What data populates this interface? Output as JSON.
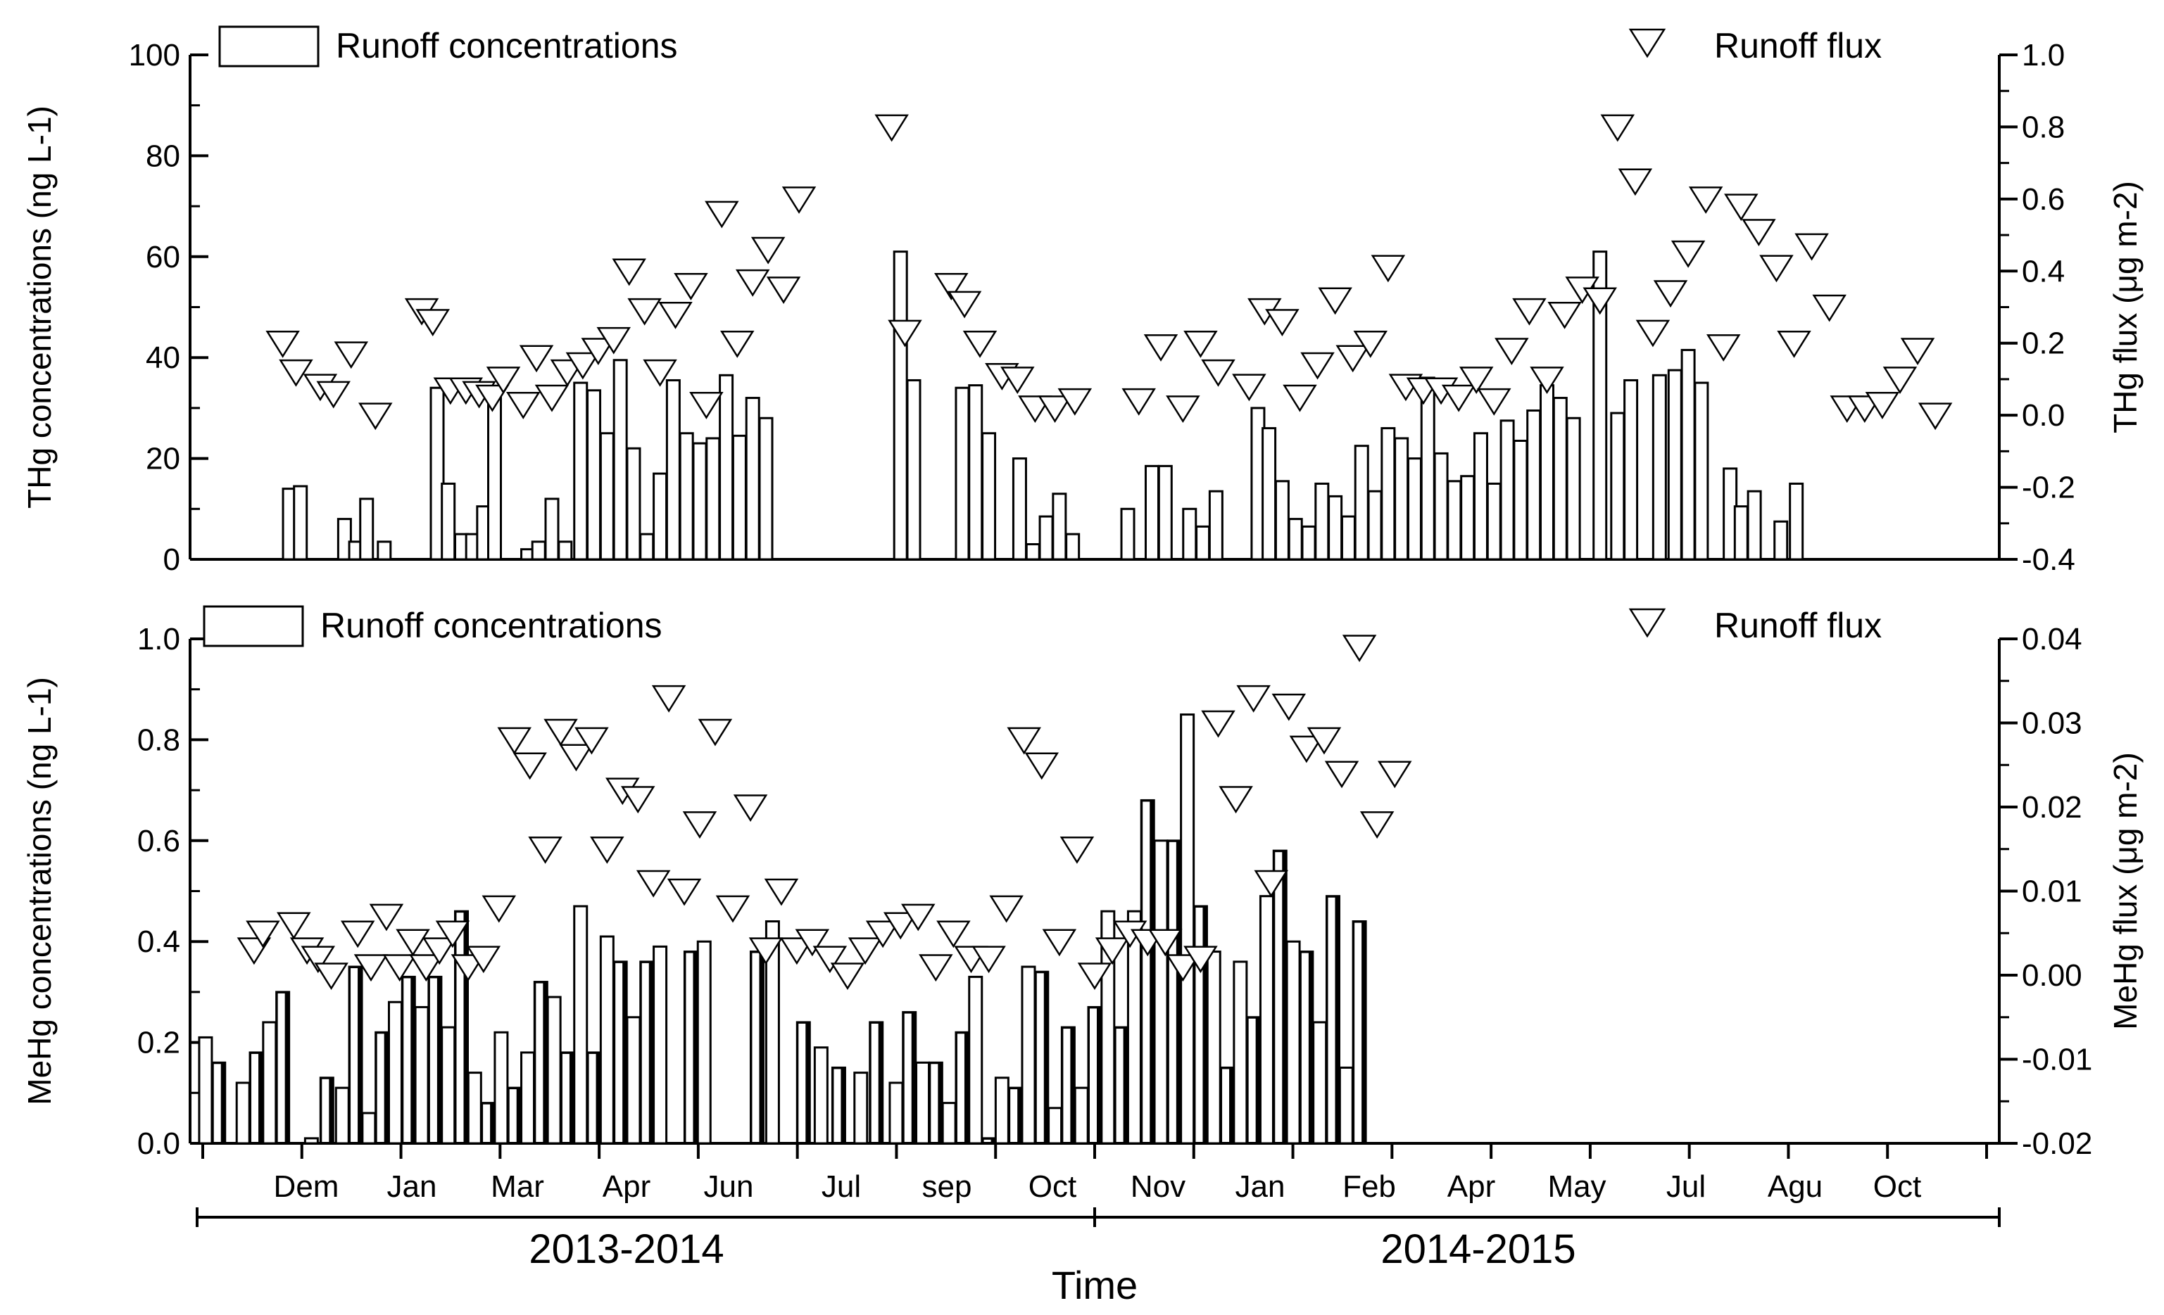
{
  "chart_data": [
    {
      "type": "bar",
      "id": "thg",
      "ylabel": "THg concentrations (ng L-1)",
      "y2label": "THg flux (μg m-2)",
      "ylim": [
        0,
        100
      ],
      "y2lim": [
        -0.4,
        1.0
      ],
      "yticks": [
        "0",
        "20",
        "40",
        "60",
        "80",
        "100"
      ],
      "y2ticks": [
        "-0.4",
        "-0.2",
        "0.0",
        "0.2",
        "0.4",
        "0.6",
        "0.8",
        "1.0"
      ],
      "legend": {
        "bar": "Runoff concentrations",
        "marker": "Runoff flux"
      },
      "series": [
        {
          "name": "Runoff concentrations",
          "kind": "bar",
          "x": [
            4.5,
            5.0,
            7.0,
            7.5,
            8.0,
            8.8,
            11.2,
            11.7,
            12.3,
            12.8,
            13.3,
            13.8,
            15.3,
            15.8,
            16.4,
            17.0,
            17.7,
            18.3,
            18.9,
            19.5,
            20.1,
            20.7,
            21.3,
            21.9,
            22.5,
            23.1,
            23.7,
            24.3,
            24.9,
            25.5,
            26.1,
            26.7,
            27.3,
            27.9,
            32.2,
            32.8,
            35.0,
            35.6,
            36.2,
            37.6,
            38.2,
            38.8,
            39.4,
            40.0,
            42.5,
            43.6,
            44.2,
            45.3,
            45.9,
            46.5,
            48.4,
            48.9,
            49.5,
            50.1,
            50.7,
            51.3,
            51.9,
            52.5,
            53.1,
            53.7,
            54.3,
            54.9,
            55.5,
            56.1,
            56.7,
            57.3,
            57.9,
            58.5,
            59.1,
            59.7,
            60.3,
            60.9,
            61.5,
            62.1,
            62.7,
            63.3,
            63.9,
            64.7,
            65.3,
            66.0,
            66.6,
            67.3,
            67.9,
            68.5,
            69.2,
            69.8,
            70.3,
            70.9,
            71.5,
            72.1,
            72.8,
            73.4,
            74.0,
            74.6,
            77.3,
            77.8,
            78.4,
            79.6,
            80.2
          ],
          "values": [
            14,
            14.5,
            8,
            3.5,
            12,
            3.5,
            34,
            15,
            5,
            5,
            10.5,
            34,
            2,
            3.5,
            12,
            3.5,
            35,
            33.5,
            25,
            39.5,
            22,
            5,
            17,
            35.5,
            25,
            23,
            24,
            36.5,
            24.5,
            32,
            28,
            0,
            0,
            0,
            61,
            35.5,
            34,
            34.5,
            25,
            20,
            3,
            8.5,
            13,
            5,
            10,
            18.5,
            18.5,
            10,
            6.5,
            13.5,
            30,
            26,
            15.5,
            8,
            6.5,
            15,
            12.5,
            8.5,
            22.5,
            13.5,
            26,
            24,
            20,
            36,
            21,
            15.5,
            16.5,
            25,
            15,
            27.5,
            23.5,
            29.5,
            34.5,
            32,
            28,
            0,
            61,
            29,
            35.5,
            0,
            36.5,
            37.5,
            41.5,
            35,
            0,
            18,
            10.5,
            13.5,
            0,
            7.5,
            15,
            0,
            0,
            0,
            0,
            0,
            0,
            0,
            0
          ]
        },
        {
          "name": "Runoff flux",
          "kind": "marker",
          "x": [
            4.2,
            4.8,
            5.9,
            6.5,
            7.3,
            8.4,
            10.5,
            11.0,
            11.8,
            12.5,
            13.1,
            13.7,
            14.2,
            15.1,
            15.7,
            16.4,
            17.1,
            17.8,
            18.5,
            19.2,
            19.9,
            20.6,
            21.3,
            22.0,
            22.7,
            23.4,
            24.1,
            24.8,
            25.5,
            26.2,
            26.9,
            27.6,
            31.8,
            32.4,
            34.5,
            35.1,
            35.8,
            36.8,
            37.5,
            38.3,
            39.2,
            40.1,
            43.0,
            44.0,
            45.0,
            45.8,
            46.6,
            48.0,
            48.7,
            49.5,
            50.3,
            51.1,
            51.9,
            52.7,
            53.5,
            54.3,
            55.1,
            55.9,
            56.7,
            57.5,
            58.3,
            59.1,
            59.9,
            60.7,
            61.5,
            62.3,
            63.1,
            63.9,
            64.7,
            65.5,
            66.3,
            67.1,
            67.9,
            68.7,
            69.5,
            70.3,
            71.1,
            71.9,
            72.7,
            73.5,
            74.3,
            75.1,
            75.9,
            76.7,
            77.5,
            78.3,
            79.1
          ],
          "values": [
            0.2,
            0.12,
            0.08,
            0.06,
            0.17,
            0.0,
            0.29,
            0.26,
            0.07,
            0.07,
            0.06,
            0.05,
            0.1,
            0.03,
            0.16,
            0.05,
            0.12,
            0.14,
            0.18,
            0.21,
            0.4,
            0.29,
            0.12,
            0.28,
            0.36,
            0.03,
            0.56,
            0.2,
            0.37,
            0.46,
            0.35,
            0.6,
            0.8,
            0.23,
            0.36,
            0.31,
            0.2,
            0.11,
            0.1,
            0.02,
            0.02,
            0.04,
            0.04,
            0.19,
            0.02,
            0.2,
            0.12,
            0.08,
            0.29,
            0.26,
            0.05,
            0.14,
            0.32,
            0.16,
            0.2,
            0.41,
            0.08,
            0.07,
            0.07,
            0.05,
            0.1,
            0.04,
            0.18,
            0.29,
            0.1,
            0.28,
            0.35,
            0.32,
            0.8,
            0.65,
            0.23,
            0.34,
            0.45,
            0.6,
            0.19,
            0.58,
            0.51,
            0.41,
            0.2,
            0.47,
            0.3,
            0.02,
            0.02,
            0.03,
            0.1,
            0.18,
            0.0
          ]
        }
      ]
    },
    {
      "type": "bar",
      "id": "mehg",
      "ylabel": "MeHg concentrations (ng L-1)",
      "y2label": "MeHg flux (μg m-2)",
      "ylim": [
        0,
        1.0
      ],
      "y2lim": [
        -0.02,
        0.04
      ],
      "yticks": [
        "0.0",
        "0.2",
        "0.4",
        "0.6",
        "0.8",
        "1.0"
      ],
      "y2ticks": [
        "-0.02",
        "-0.01",
        "0.00",
        "0.01",
        "0.02",
        "0.03",
        "0.04"
      ],
      "xticks": [
        "Dem",
        "Jan",
        "Mar",
        "Apr",
        "Jun",
        "Jul",
        "sep",
        "Oct",
        "Nov",
        "Jan",
        "Feb",
        "Apr",
        "May",
        "Jul",
        "Agu",
        "Oct"
      ],
      "periods": [
        "2013-2014",
        "2014-2015"
      ],
      "xlabel": "Time",
      "legend": {
        "bar": "Runoff concentrations",
        "marker": "Runoff flux"
      },
      "series": [
        {
          "name": "Runoff concentrations",
          "kind": "bar",
          "x": [
            0.7,
            1.3,
            2.4,
            3.0,
            3.6,
            4.2,
            5.5,
            6.2,
            6.9,
            7.5,
            8.1,
            8.7,
            9.3,
            9.9,
            10.5,
            11.1,
            11.7,
            12.3,
            12.9,
            13.5,
            14.1,
            14.7,
            15.3,
            15.9,
            16.5,
            17.1,
            17.7,
            18.3,
            18.9,
            19.5,
            20.1,
            20.7,
            21.3,
            22.7,
            23.3,
            25.7,
            26.4,
            27.8,
            28.6,
            29.4,
            30.4,
            31.1,
            32.0,
            32.6,
            33.2,
            33.8,
            34.4,
            35.0,
            35.6,
            36.2,
            36.8,
            37.4,
            38.0,
            38.6,
            39.2,
            39.8,
            40.4,
            41.0,
            41.6,
            42.2,
            42.8,
            43.4,
            44.0,
            44.6,
            45.2,
            45.8,
            46.4,
            47.0,
            47.6,
            48.2,
            48.8,
            49.4,
            50.0,
            50.6,
            51.2,
            51.8,
            52.4,
            53.0,
            53.6,
            54.2,
            54.8,
            55.4,
            56.0,
            56.6,
            57.2,
            57.8,
            58.4,
            59.0,
            59.6,
            60.2,
            60.8,
            61.4,
            62.0,
            62.6,
            63.2,
            63.8,
            64.4,
            65.0,
            65.6
          ],
          "values": [
            0.21,
            0.16,
            0.12,
            0.18,
            0.24,
            0.3,
            0.01,
            0.13,
            0.11,
            0.35,
            0.06,
            0.22,
            0.28,
            0.33,
            0.27,
            0.33,
            0.23,
            0.46,
            0.14,
            0.08,
            0.22,
            0.11,
            0.18,
            0.32,
            0.29,
            0.18,
            0.47,
            0.18,
            0.41,
            0.36,
            0.25,
            0.36,
            0.39,
            0.38,
            0.4,
            0.38,
            0.44,
            0.24,
            0.19,
            0.15,
            0.14,
            0.24,
            0.12,
            0.26,
            0.16,
            0.16,
            0.08,
            0.22,
            0.33,
            0.01,
            0.13,
            0.11,
            0.35,
            0.34,
            0.07,
            0.23,
            0.11,
            0.27,
            0.46,
            0.23,
            0.46,
            0.68,
            0.6,
            0.6,
            0.85,
            0.47,
            0.38,
            0.15,
            0.36,
            0.25,
            0.49,
            0.58,
            0.4,
            0.38,
            0.24,
            0.49,
            0.15,
            0.44,
            0,
            0,
            0,
            0,
            0,
            0,
            0,
            0,
            0,
            0,
            0,
            0,
            0,
            0,
            0,
            0,
            0,
            0,
            0,
            0,
            0
          ]
        },
        {
          "name": "Runoff flux",
          "kind": "marker",
          "x": [
            2.9,
            3.3,
            4.7,
            5.3,
            5.8,
            6.4,
            7.6,
            8.2,
            8.9,
            9.5,
            10.1,
            10.7,
            11.3,
            11.9,
            12.6,
            13.3,
            14.0,
            14.7,
            15.4,
            16.1,
            16.8,
            17.5,
            18.2,
            18.9,
            19.6,
            20.3,
            21.0,
            21.7,
            22.4,
            23.1,
            23.8,
            24.6,
            25.4,
            26.1,
            26.8,
            27.5,
            28.2,
            29.0,
            29.8,
            30.6,
            31.4,
            32.2,
            33.0,
            33.8,
            34.6,
            35.4,
            36.2,
            37.0,
            37.8,
            38.6,
            39.4,
            40.2,
            41.0,
            41.8,
            42.6,
            43.4,
            44.2,
            45.0,
            45.8,
            46.6,
            47.4,
            48.2,
            49.0,
            49.8,
            50.6,
            51.4,
            52.2,
            53.0,
            53.8,
            54.6
          ],
          "values": [
            0.003,
            0.005,
            0.006,
            0.003,
            0.002,
            0.0,
            0.005,
            0.001,
            0.007,
            0.001,
            0.004,
            0.001,
            0.003,
            0.005,
            0.001,
            0.002,
            0.008,
            0.028,
            0.025,
            0.015,
            0.029,
            0.026,
            0.028,
            0.015,
            0.022,
            0.021,
            0.011,
            0.033,
            0.01,
            0.018,
            0.029,
            0.008,
            0.02,
            0.003,
            0.01,
            0.003,
            0.004,
            0.002,
            0.0,
            0.003,
            0.005,
            0.006,
            0.007,
            0.001,
            0.005,
            0.002,
            0.002,
            0.008,
            0.028,
            0.025,
            0.004,
            0.015,
            0.0,
            0.003,
            0.005,
            0.004,
            0.004,
            0.001,
            0.002,
            0.03,
            0.021,
            0.033,
            0.011,
            0.032,
            0.027,
            0.028,
            0.024,
            0.039,
            0.018,
            0.024
          ]
        }
      ]
    }
  ]
}
